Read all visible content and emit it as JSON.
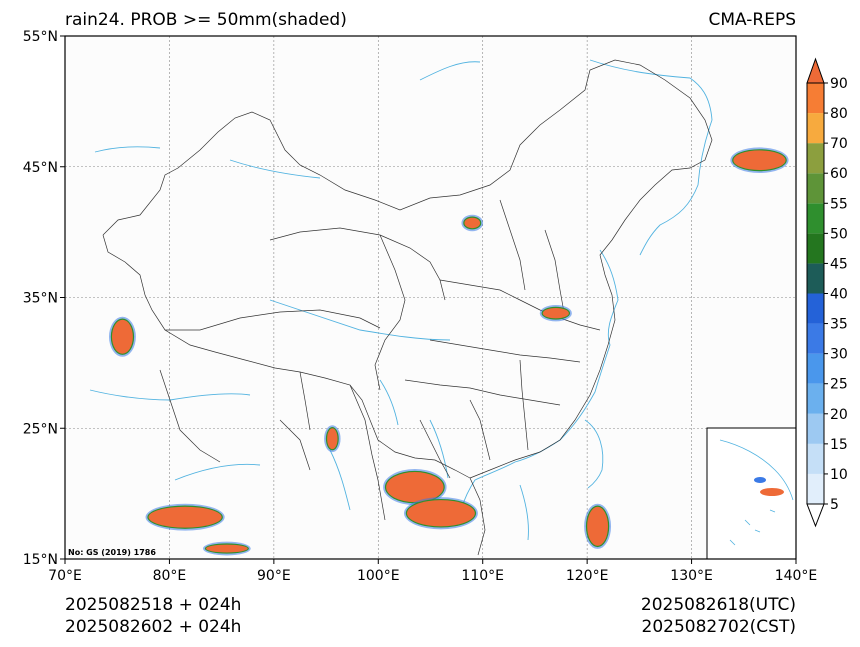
{
  "title_left": "rain24. PROB >= 50mm(shaded)",
  "title_right": "CMA-REPS",
  "lat_ticks": [
    "55°N",
    "45°N",
    "35°N",
    "25°N",
    "15°N"
  ],
  "lon_ticks": [
    "70°E",
    "80°E",
    "90°E",
    "100°E",
    "110°E",
    "120°E",
    "130°E",
    "140°E"
  ],
  "map_extent": {
    "lon": [
      70,
      140
    ],
    "lat": [
      15,
      55
    ]
  },
  "gridlines": true,
  "colorbar": {
    "levels": [
      5,
      10,
      15,
      20,
      25,
      30,
      35,
      40,
      45,
      50,
      55,
      60,
      70,
      80,
      90
    ],
    "colors": [
      "#e1eefb",
      "#c5dff7",
      "#9dc9f2",
      "#6bb0ee",
      "#4a97ec",
      "#3b7ae6",
      "#2462d8",
      "#1d5c58",
      "#24761f",
      "#2f8f2e",
      "#5e9438",
      "#8c9f3e",
      "#f7aa3e",
      "#f67d34",
      "#ee6a37"
    ],
    "extend": "both"
  },
  "shaded_regions": [
    {
      "lon": 75.5,
      "lat": 32,
      "w": 2.0,
      "h": 2.6
    },
    {
      "lon": 81.5,
      "lat": 18.2,
      "w": 7.0,
      "h": 1.6
    },
    {
      "lon": 85.5,
      "lat": 15.8,
      "w": 4.0,
      "h": 0.6
    },
    {
      "lon": 95.6,
      "lat": 24.2,
      "w": 1.0,
      "h": 1.6
    },
    {
      "lon": 103.5,
      "lat": 20.5,
      "w": 5.5,
      "h": 2.3
    },
    {
      "lon": 106.0,
      "lat": 18.5,
      "w": 6.5,
      "h": 2.0
    },
    {
      "lon": 121.0,
      "lat": 17.5,
      "w": 2.0,
      "h": 3.0
    },
    {
      "lon": 136.5,
      "lat": 45.5,
      "w": 5.0,
      "h": 1.5
    },
    {
      "lon": 117.0,
      "lat": 33.8,
      "w": 2.5,
      "h": 0.8
    },
    {
      "lon": 109.0,
      "lat": 40.7,
      "w": 1.5,
      "h": 0.8
    }
  ],
  "gs_note": "No: GS (2019) 1786",
  "bottom_left": [
    "2025082518  +  024h",
    "2025082602  +  024h"
  ],
  "bottom_right": [
    "2025082618(UTC)",
    "2025082702(CST)"
  ]
}
